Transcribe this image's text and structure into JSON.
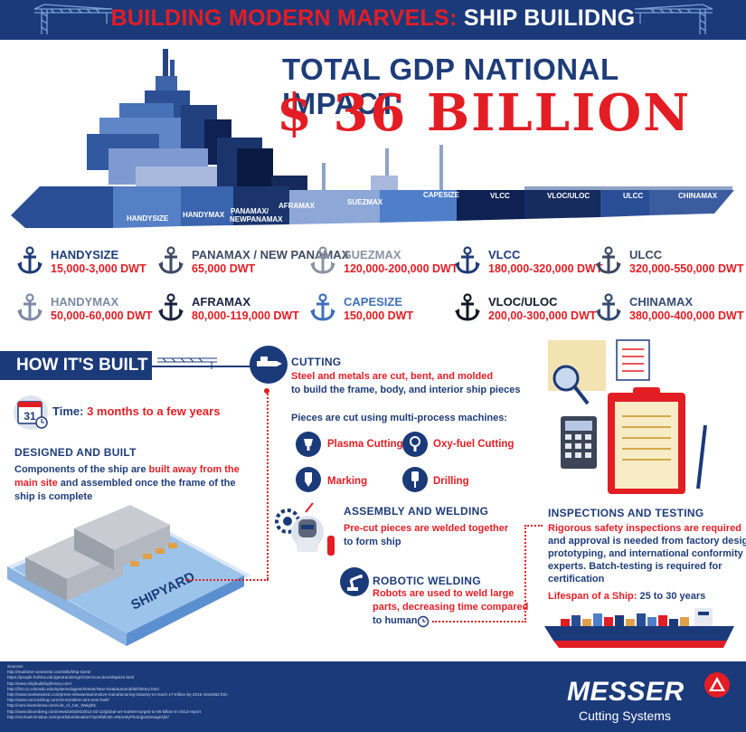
{
  "header": {
    "title_red": "BUILDING MODERN MARVELS:",
    "title_white": "SHIP BUILIDNG"
  },
  "hero": {
    "gdp_label": "TOTAL GDP NATIONAL IMPACT:",
    "gdp_value": "$ 36 BILLION",
    "hull_labels": [
      "HANDYSIZE",
      "HANDYMAX",
      "PANAMAX/ NEWPANAMAX",
      "AFRAMAX",
      "SUEZMAX",
      "CAPESIZE",
      "VLCC",
      "VLOC/ULOC",
      "ULCC",
      "CHINAMAX"
    ]
  },
  "ship_classes": [
    {
      "name": "HANDYSIZE",
      "dwt": "15,000-3,000 DWT",
      "color": "#1e3c78"
    },
    {
      "name": "PANAMAX / NEW PANAMAX",
      "dwt": "65,000 DWT",
      "color": "#3d4a63"
    },
    {
      "name": "SUEZMAX",
      "dwt": "120,000-200,000 DWT",
      "color": "#8a93a3"
    },
    {
      "name": "VLCC",
      "dwt": "180,000-320,000 DWT",
      "color": "#1e3c78"
    },
    {
      "name": "ULCC",
      "dwt": "320,000-550,000 DWT",
      "color": "#3d4a63"
    },
    {
      "name": "HANDYMAX",
      "dwt": "50,000-60,000 DWT",
      "color": "#7d8aa6"
    },
    {
      "name": "AFRAMAX",
      "dwt": "80,000-119,000 DWT",
      "color": "#1a2340"
    },
    {
      "name": "CAPESIZE",
      "dwt": "150,000 DWT",
      "color": "#3f6fb8"
    },
    {
      "name": "VLOC/ULOC",
      "dwt": "200,00-300,000 DWT",
      "color": "#111827"
    },
    {
      "name": "CHINAMAX",
      "dwt": "380,000-400,000 DWT",
      "color": "#344b73"
    }
  ],
  "how_built": {
    "title": "HOW IT'S BUILT",
    "time_label": "Time:",
    "time_value": "3 months to a few years",
    "calendar_day": "31",
    "designed_title": "DESIGNED AND BUILT",
    "designed_text_1": "Components of the ship are",
    "designed_text_red": "built away from the main site",
    "designed_text_2": "and assembled once the frame of the ship is complete",
    "shipyard_label": "SHIPYARD"
  },
  "cutting": {
    "title": "CUTTING",
    "text_red": "Steel and metals are cut, bent, and molded",
    "text": "to build the frame, body, and interior ship pieces",
    "machines_intro": "Pieces are cut using multi-process machines:",
    "processes": [
      "Plasma Cutting",
      "Oxy-fuel Cutting",
      "Marking",
      "Drilling"
    ]
  },
  "assembly": {
    "title": "ASSEMBLY AND WELDING",
    "text_red": "Pre-cut pieces are welded together",
    "text": "to form ship"
  },
  "robotic": {
    "title": "ROBOTIC WELDING",
    "text_red_1": "Robots are used to weld large",
    "text_red_2": "parts, decreasing time compared",
    "text": "to humans"
  },
  "inspections": {
    "title": "INSPECTIONS AND TESTING",
    "text_red": "Rigorous safety inspections are required",
    "text_lines": [
      "and approval is needed from factory design,",
      "prototyping, and international conformity",
      "experts. Batch-testing is required for",
      "certification"
    ],
    "lifespan_label": "Lifespan of a Ship:",
    "lifespan_value": "25 to 30 years"
  },
  "footer": {
    "sources_title": "Sources:",
    "sources": [
      "http://maritime-connector.com/wiki/ship-sizes/",
      "https://people.hofstra.edu/geotrans/eng/ch3en/conc3en/shipsize.html",
      "http://www.shipbuildinghistory.com/",
      "http://f10.cs.colorado.edu/systems/agent/sheets/New-Vista/automobile/history.html",
      "http://www.marketwired.com/press-release/automotive-manufacturing-industry-to-reach-17-trillion-by-2015-1544282.htm",
      "http://www.cercrushing.com/15-smallest-cars-ever-built/",
      "http://cars.lovetoknow.com/List_of_Car_Weights",
      "http://www.bloomberg.com/news/articles/2014-03-12/global-art-market-surged-to-66-billion-in-2013-report",
      "http://michaelchristian.com/portfolio/elevation/?portfolioID=8#prettyPhoto[postimages]/4/"
    ],
    "brand": "MESSER",
    "brand_sub": "Cutting Systems"
  },
  "colors": {
    "navy": "#1b3a7a",
    "red": "#e31d24",
    "hull_dark": "#0e2152",
    "hull_mid": "#24488f",
    "hull_light": "#4f7fc9"
  }
}
